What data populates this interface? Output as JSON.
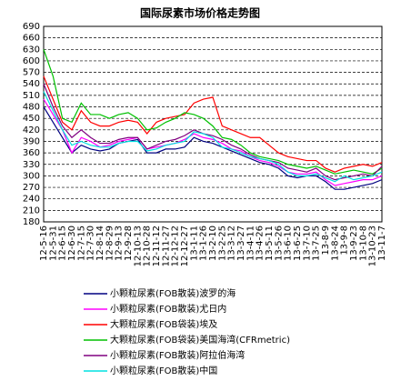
{
  "chart_data": {
    "type": "line",
    "title": "国际尿素市场价格走势图",
    "categories": [
      "12-5-16",
      "12-5-31",
      "12-6-15",
      "12-6-30",
      "12-7-15",
      "12-7-30",
      "12-8-14",
      "12-8-29",
      "12-9-13",
      "12-9-28",
      "12-10-13",
      "12-10-28",
      "12-11-12",
      "12-11-27",
      "12-12-12",
      "12-12-27",
      "13-1-11",
      "13-1-26",
      "13-2-10",
      "13-2-25",
      "13-3-12",
      "13-3-27",
      "13-4-11",
      "13-4-26",
      "13-5-11",
      "13-5-26",
      "13-6-10",
      "13-6-25",
      "13-7-10",
      "13-7-25",
      "13-8-9",
      "13-8-24",
      "13-9-8",
      "13-9-23",
      "13-10-8",
      "13-10-23",
      "13-11-7"
    ],
    "ylim": [
      180,
      690
    ],
    "yticks": [
      180,
      210,
      240,
      270,
      300,
      330,
      360,
      390,
      420,
      450,
      480,
      510,
      540,
      570,
      600,
      630,
      660,
      690
    ],
    "grid": true,
    "series": [
      {
        "name": "小颗粒尿素(FOB散装)波罗的海",
        "color": "#000080",
        "values": [
          480,
          440,
          400,
          360,
          380,
          370,
          365,
          370,
          385,
          390,
          395,
          360,
          360,
          370,
          370,
          375,
          400,
          390,
          385,
          375,
          365,
          355,
          345,
          335,
          330,
          320,
          300,
          295,
          300,
          300,
          285,
          265,
          265,
          270,
          275,
          280,
          290
        ]
      },
      {
        "name": "小颗粒尿素(FOB散装)尤日内",
        "color": "#ff00ff",
        "values": [
          500,
          460,
          420,
          360,
          400,
          390,
          375,
          380,
          390,
          395,
          400,
          370,
          375,
          380,
          385,
          395,
          410,
          400,
          395,
          385,
          370,
          365,
          350,
          340,
          335,
          325,
          310,
          305,
          305,
          310,
          290,
          275,
          280,
          285,
          290,
          290,
          300
        ]
      },
      {
        "name": "大颗粒尿素(FOB袋装)埃及",
        "color": "#ff0000",
        "values": [
          560,
          500,
          440,
          420,
          470,
          440,
          430,
          430,
          440,
          445,
          440,
          410,
          440,
          450,
          455,
          460,
          490,
          500,
          505,
          430,
          420,
          410,
          400,
          400,
          380,
          360,
          350,
          345,
          340,
          340,
          320,
          310,
          320,
          325,
          330,
          325,
          335
        ]
      },
      {
        "name": "大颗粒尿素(FOB袋装)美国海湾(CFRmetric)",
        "color": "#00c000",
        "values": [
          630,
          560,
          450,
          440,
          490,
          460,
          460,
          450,
          460,
          465,
          450,
          420,
          425,
          440,
          450,
          465,
          460,
          450,
          430,
          400,
          395,
          380,
          360,
          350,
          345,
          340,
          330,
          325,
          320,
          325,
          315,
          305,
          310,
          315,
          310,
          305,
          320
        ]
      },
      {
        "name": "小颗粒尿素(FOB散装)阿拉伯海湾",
        "color": "#800080",
        "values": [
          540,
          480,
          430,
          400,
          420,
          400,
          385,
          385,
          395,
          400,
          400,
          370,
          380,
          390,
          395,
          405,
          420,
          410,
          405,
          395,
          380,
          370,
          355,
          345,
          340,
          335,
          320,
          315,
          310,
          320,
          300,
          290,
          295,
          300,
          305,
          300,
          325
        ]
      },
      {
        "name": "小颗粒尿素(FOB散装)中国",
        "color": "#00e0e0",
        "values": [
          520,
          470,
          420,
          380,
          390,
          380,
          375,
          375,
          385,
          390,
          390,
          365,
          370,
          380,
          385,
          390,
          415,
          410,
          400,
          375,
          370,
          360,
          350,
          345,
          340,
          330,
          310,
          300,
          300,
          305,
          295,
          285,
          300,
          290,
          295,
          300,
          310
        ]
      }
    ]
  }
}
